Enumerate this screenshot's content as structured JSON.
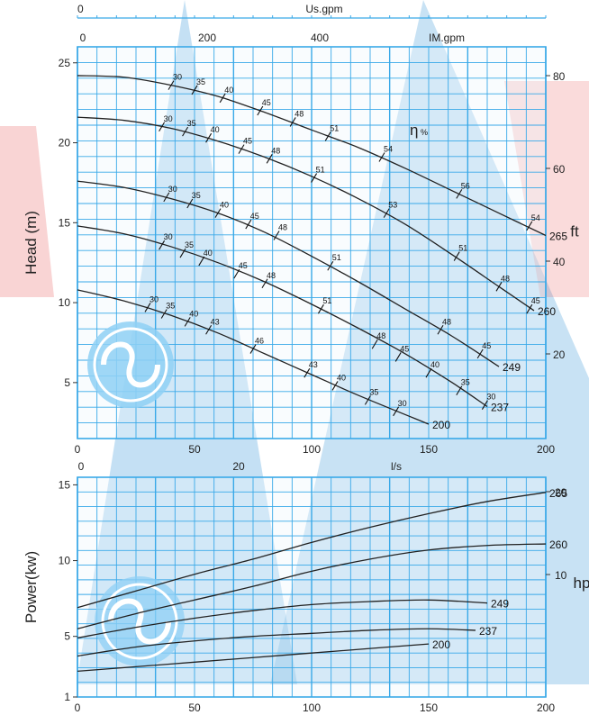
{
  "colors": {
    "grid": "#39a9e8",
    "grid_bg": "#eef7fd",
    "watermark_blue": "#2c8fd6",
    "watermark_red": "#e23a3a",
    "logo_blue": "#8fd0f5",
    "curve": "#222222"
  },
  "chart_data": [
    {
      "id": "head",
      "type": "line",
      "ylabel": "Head (m)",
      "ylabel_right": "ft",
      "x_range": [
        0,
        200
      ],
      "y_range": [
        1.5,
        26
      ],
      "x_ticks": [
        0,
        50,
        100,
        150,
        200
      ],
      "y_ticks": [
        5,
        10,
        15,
        20,
        25
      ],
      "ft_ticks": [
        20,
        40,
        60,
        80
      ],
      "top_axes": [
        {
          "label": "Us.gpm",
          "ticks": [
            0
          ]
        },
        {
          "label": "IM.gpm",
          "ticks": [
            0,
            200,
            400
          ]
        }
      ],
      "eff_title": "η",
      "eff_unit": "%",
      "grid": true,
      "series": [
        {
          "name": "265",
          "x": [
            0,
            20,
            40,
            60,
            80,
            100,
            120,
            140,
            160,
            180,
            200
          ],
          "y": [
            24.2,
            24.1,
            23.6,
            22.9,
            21.9,
            20.8,
            19.7,
            18.4,
            17.0,
            15.6,
            14.2
          ]
        },
        {
          "name": "260",
          "x": [
            0,
            20,
            40,
            60,
            80,
            100,
            120,
            140,
            160,
            180,
            195
          ],
          "y": [
            21.6,
            21.4,
            20.9,
            20.1,
            19.1,
            17.9,
            16.5,
            14.9,
            13.0,
            11.0,
            9.5
          ]
        },
        {
          "name": "249",
          "x": [
            0,
            20,
            40,
            60,
            80,
            100,
            120,
            140,
            160,
            180
          ],
          "y": [
            17.6,
            17.2,
            16.5,
            15.6,
            14.4,
            12.9,
            11.3,
            9.6,
            7.9,
            6.0
          ]
        },
        {
          "name": "237",
          "x": [
            0,
            20,
            40,
            60,
            80,
            100,
            120,
            140,
            160,
            175
          ],
          "y": [
            14.8,
            14.3,
            13.5,
            12.5,
            11.3,
            9.9,
            8.4,
            6.8,
            5.0,
            3.5
          ]
        },
        {
          "name": "200",
          "x": [
            0,
            20,
            40,
            60,
            80,
            100,
            120,
            150
          ],
          "y": [
            10.8,
            10.1,
            9.2,
            8.1,
            6.8,
            5.5,
            4.2,
            2.4
          ]
        }
      ],
      "efficiency_marks": [
        {
          "series": "265",
          "points": [
            [
              40,
              23.6,
              "30"
            ],
            [
              50,
              23.3,
              "35"
            ],
            [
              62,
              22.8,
              "40"
            ],
            [
              78,
              22.0,
              "45"
            ],
            [
              92,
              21.3,
              "48"
            ],
            [
              107,
              20.4,
              "51"
            ],
            [
              130,
              19.1,
              "54"
            ],
            [
              163,
              16.8,
              "56"
            ],
            [
              193,
              14.8,
              "54"
            ]
          ]
        },
        {
          "series": "260",
          "points": [
            [
              36,
              21.0,
              "30"
            ],
            [
              46,
              20.7,
              "35"
            ],
            [
              56,
              20.3,
              "40"
            ],
            [
              70,
              19.6,
              "45"
            ],
            [
              82,
              19.0,
              "48"
            ],
            [
              101,
              17.8,
              "51"
            ],
            [
              132,
              15.6,
              "53"
            ],
            [
              162,
              12.9,
              "51"
            ],
            [
              180,
              11.0,
              "48"
            ],
            [
              193,
              9.6,
              "45"
            ]
          ]
        },
        {
          "series": "249",
          "points": [
            [
              38,
              16.6,
              "30"
            ],
            [
              48,
              16.2,
              "35"
            ],
            [
              60,
              15.6,
              "40"
            ],
            [
              73,
              14.9,
              "45"
            ],
            [
              85,
              14.2,
              "48"
            ],
            [
              108,
              12.3,
              "51"
            ],
            [
              155,
              8.3,
              "48"
            ],
            [
              172,
              6.8,
              "45"
            ]
          ]
        },
        {
          "series": "237",
          "points": [
            [
              36,
              13.6,
              "30"
            ],
            [
              45,
              13.1,
              "35"
            ],
            [
              53,
              12.6,
              "40"
            ],
            [
              68,
              11.8,
              "45"
            ],
            [
              80,
              11.2,
              "48"
            ],
            [
              104,
              9.6,
              "51"
            ],
            [
              127,
              7.4,
              "48"
            ],
            [
              137,
              6.6,
              "45"
            ],
            [
              150,
              5.6,
              "40"
            ],
            [
              163,
              4.5,
              "35"
            ],
            [
              174,
              3.6,
              "30"
            ]
          ]
        },
        {
          "series": "200",
          "points": [
            [
              30,
              9.7,
              "30"
            ],
            [
              37,
              9.3,
              "35"
            ],
            [
              47,
              8.8,
              "40"
            ],
            [
              56,
              8.3,
              "43"
            ],
            [
              75,
              7.1,
              "46"
            ],
            [
              98,
              5.6,
              "43"
            ],
            [
              110,
              4.8,
              "40"
            ],
            [
              124,
              3.9,
              "35"
            ],
            [
              136,
              3.2,
              "30"
            ]
          ]
        }
      ]
    },
    {
      "id": "power",
      "type": "line",
      "ylabel": "Power(kw)",
      "ylabel_right": "hp",
      "x_range": [
        0,
        200
      ],
      "y_range": [
        1,
        15.5
      ],
      "x_ticks": [
        0,
        50,
        100,
        150,
        200
      ],
      "y_ticks": [
        1,
        5,
        10,
        15
      ],
      "hp_ticks": [
        10,
        20
      ],
      "top_axes": [
        {
          "label": "l/s",
          "ticks": [
            0,
            20
          ]
        }
      ],
      "grid": true,
      "series": [
        {
          "name": "265",
          "x": [
            0,
            25,
            50,
            75,
            100,
            125,
            150,
            175,
            200
          ],
          "y": [
            6.9,
            8.0,
            9.1,
            10.1,
            11.2,
            12.2,
            13.1,
            13.9,
            14.5
          ]
        },
        {
          "name": "260",
          "x": [
            0,
            25,
            50,
            75,
            100,
            125,
            150,
            175,
            200
          ],
          "y": [
            5.5,
            6.5,
            7.4,
            8.3,
            9.3,
            10.1,
            10.7,
            11.0,
            11.1
          ]
        },
        {
          "name": "249",
          "x": [
            0,
            25,
            50,
            75,
            100,
            125,
            150,
            175
          ],
          "y": [
            4.9,
            5.6,
            6.2,
            6.7,
            7.1,
            7.3,
            7.4,
            7.2
          ]
        },
        {
          "name": "237",
          "x": [
            0,
            25,
            50,
            75,
            100,
            125,
            150,
            170
          ],
          "y": [
            3.7,
            4.3,
            4.7,
            5.0,
            5.2,
            5.4,
            5.5,
            5.4
          ]
        },
        {
          "name": "200",
          "x": [
            0,
            25,
            50,
            75,
            100,
            125,
            150
          ],
          "y": [
            2.7,
            3.0,
            3.3,
            3.6,
            3.9,
            4.2,
            4.5
          ]
        }
      ]
    }
  ]
}
